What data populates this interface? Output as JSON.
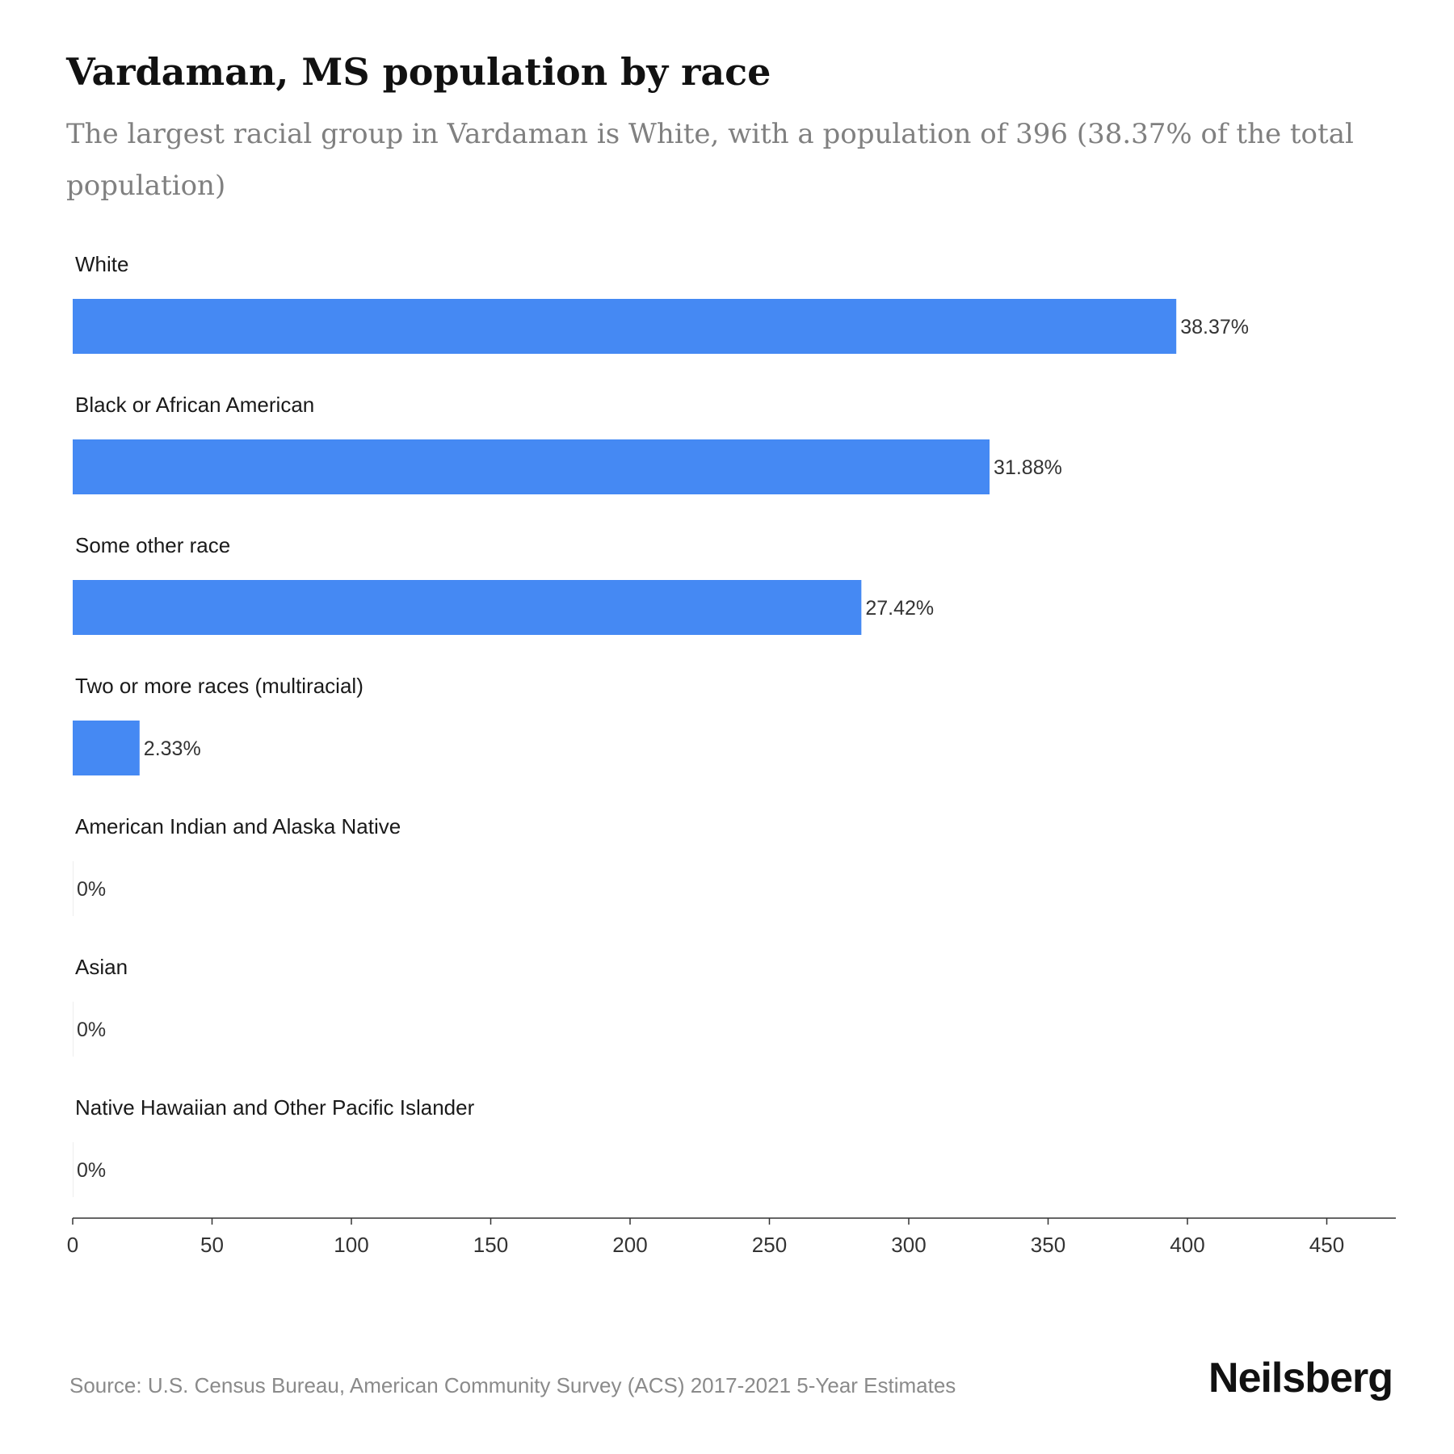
{
  "chart_data": {
    "type": "bar",
    "orientation": "horizontal",
    "title": "Vardaman, MS population by race",
    "subtitle": "The largest racial group in Vardaman is White, with a population of 396 (38.37% of the total population)",
    "categories": [
      "White",
      "Black or African American",
      "Some other race",
      "Two or more races (multiracial)",
      "American Indian and Alaska Native",
      "Asian",
      "Native Hawaiian and Other Pacific Islander"
    ],
    "values": [
      396,
      329,
      283,
      24,
      0,
      0,
      0
    ],
    "data_labels": [
      "38.37%",
      "31.88%",
      "27.42%",
      "2.33%",
      "0%",
      "0%",
      "0%"
    ],
    "xlim": [
      0,
      475
    ],
    "x_ticks": [
      0,
      50,
      100,
      150,
      200,
      250,
      300,
      350,
      400,
      450
    ],
    "grid": false,
    "legend": "none",
    "bar_color": "#4589f3"
  },
  "source": "Source: U.S. Census Bureau, American Community Survey (ACS) 2017-2021 5-Year Estimates",
  "brand": "Neilsberg"
}
